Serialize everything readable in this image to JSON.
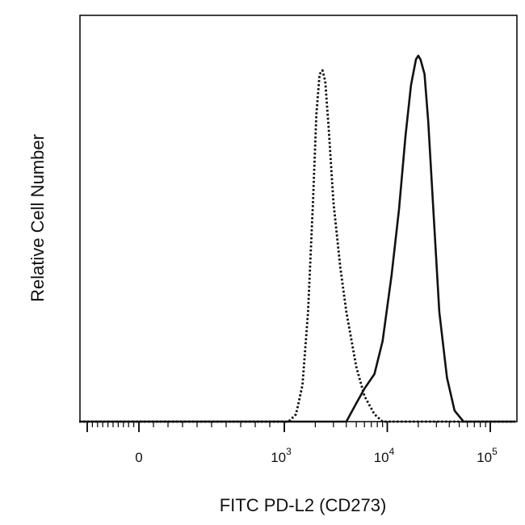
{
  "chart_data": {
    "type": "line",
    "title": "",
    "xlabel": "FITC PD-L2 (CD273)",
    "ylabel": "Relative Cell Number",
    "x_scale": "biexponential",
    "x_ticks": [
      {
        "value": 0,
        "label": "0"
      },
      {
        "value": 1000,
        "label": "10",
        "exp": "3"
      },
      {
        "value": 10000,
        "label": "10",
        "exp": "4"
      },
      {
        "value": 100000,
        "label": "10",
        "exp": "5"
      }
    ],
    "ylim": [
      0,
      1
    ],
    "grid": false,
    "legend": "none",
    "series": [
      {
        "style": "dotted",
        "color": "#111111",
        "points": [
          [
            1100,
            0.0
          ],
          [
            1300,
            0.02
          ],
          [
            1500,
            0.1
          ],
          [
            1700,
            0.3
          ],
          [
            1900,
            0.6
          ],
          [
            2050,
            0.84
          ],
          [
            2200,
            0.95
          ],
          [
            2350,
            0.96
          ],
          [
            2500,
            0.93
          ],
          [
            2700,
            0.8
          ],
          [
            3000,
            0.6
          ],
          [
            3500,
            0.42
          ],
          [
            4000,
            0.3
          ],
          [
            5000,
            0.15
          ],
          [
            6000,
            0.07
          ],
          [
            7500,
            0.02
          ],
          [
            9000,
            0.0
          ]
        ]
      },
      {
        "style": "solid",
        "color": "#111111",
        "points": [
          [
            4000,
            0.0
          ],
          [
            5000,
            0.05
          ],
          [
            6000,
            0.09
          ],
          [
            7500,
            0.13
          ],
          [
            9000,
            0.22
          ],
          [
            11000,
            0.4
          ],
          [
            13000,
            0.58
          ],
          [
            15000,
            0.78
          ],
          [
            17000,
            0.92
          ],
          [
            19000,
            0.99
          ],
          [
            20000,
            1.0
          ],
          [
            21000,
            0.99
          ],
          [
            23000,
            0.95
          ],
          [
            25000,
            0.82
          ],
          [
            28000,
            0.58
          ],
          [
            32000,
            0.3
          ],
          [
            38000,
            0.12
          ],
          [
            45000,
            0.03
          ],
          [
            55000,
            0.0
          ]
        ]
      }
    ]
  }
}
